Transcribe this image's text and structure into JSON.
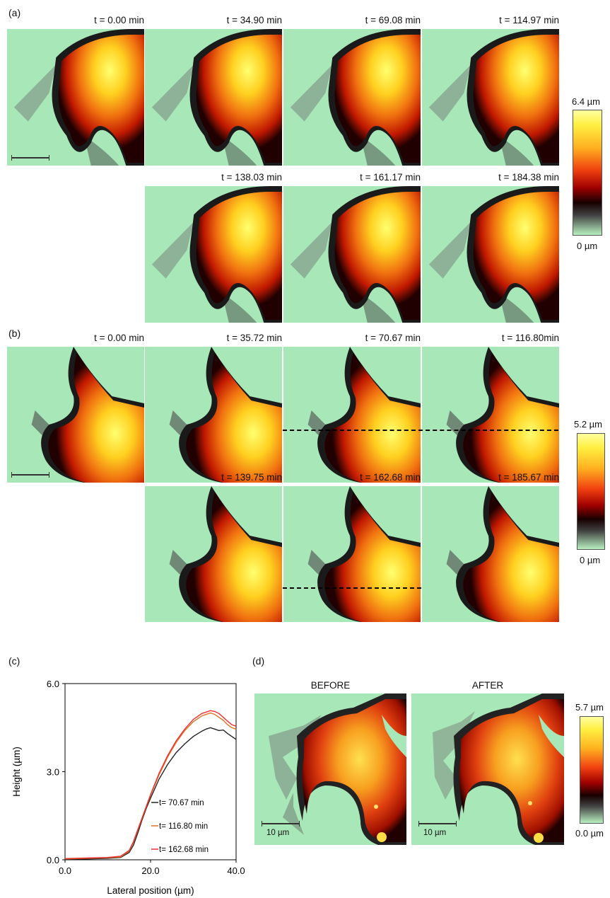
{
  "panels": {
    "a": {
      "label": "(a)",
      "times": [
        "t = 0.00 min",
        "t = 34.90 min",
        "t = 69.08 min",
        "t = 114.97 min",
        "t = 138.03 min",
        "t = 161.17 min",
        "t = 184.38 min"
      ],
      "colorbar": {
        "max": "6.4 µm",
        "min": "0 µm"
      }
    },
    "b": {
      "label": "(b)",
      "times": [
        "t = 0.00 min",
        "t = 35.72 min",
        "t = 70.67 min",
        "t = 116.80min",
        "t = 139.75 min",
        "t = 162.68 min",
        "t = 185.67 min"
      ],
      "colorbar": {
        "max": "5.2 µm",
        "min": "0 µm"
      }
    },
    "c": {
      "label": "(c)"
    },
    "d": {
      "label": "(d)",
      "before": "BEFORE",
      "after": "AFTER",
      "scale_before": "10 µm",
      "scale_after": "10 µm",
      "colorbar": {
        "max": "5.7 µm",
        "min": "0.0 µm"
      }
    }
  },
  "chart_data": {
    "type": "line",
    "xlabel": "Lateral position (µm)",
    "ylabel": "Height (µm)",
    "xlim": [
      0,
      40
    ],
    "ylim": [
      0,
      6
    ],
    "xticks": [
      "0.0",
      "20.0",
      "40.0"
    ],
    "yticks": [
      "0.0",
      "3.0",
      "6.0"
    ],
    "legend_position": "inside-lower-right",
    "series": [
      {
        "name": "t= 70.67 min",
        "color": "#222222",
        "x": [
          0,
          5,
          10,
          13,
          15,
          16,
          17,
          18,
          19,
          20,
          22,
          24,
          26,
          28,
          30,
          32,
          33,
          34,
          35,
          36,
          37,
          38,
          39,
          40
        ],
        "y": [
          0.02,
          0.03,
          0.05,
          0.08,
          0.25,
          0.5,
          0.9,
          1.35,
          1.75,
          2.1,
          2.75,
          3.25,
          3.65,
          3.95,
          4.2,
          4.38,
          4.45,
          4.5,
          4.45,
          4.4,
          4.42,
          4.3,
          4.2,
          4.1
        ]
      },
      {
        "name": "t= 116.80 min",
        "color": "#e07020",
        "x": [
          0,
          5,
          10,
          13,
          15,
          16,
          17,
          18,
          19,
          20,
          22,
          24,
          26,
          28,
          30,
          32,
          33,
          34,
          35,
          36,
          37,
          38,
          39,
          40
        ],
        "y": [
          0.03,
          0.05,
          0.07,
          0.1,
          0.3,
          0.6,
          1.0,
          1.4,
          1.8,
          2.2,
          2.9,
          3.5,
          4.0,
          4.4,
          4.7,
          4.9,
          4.95,
          5.0,
          4.95,
          4.85,
          4.75,
          4.6,
          4.5,
          4.45
        ]
      },
      {
        "name": "t= 162.68 min",
        "color": "#ee3030",
        "x": [
          0,
          5,
          10,
          13,
          15,
          16,
          17,
          18,
          19,
          20,
          22,
          24,
          26,
          28,
          30,
          32,
          33,
          34,
          35,
          36,
          37,
          38,
          39,
          40
        ],
        "y": [
          0.04,
          0.06,
          0.08,
          0.12,
          0.32,
          0.62,
          1.02,
          1.42,
          1.82,
          2.22,
          2.95,
          3.55,
          4.05,
          4.45,
          4.78,
          4.98,
          5.03,
          5.08,
          5.05,
          4.98,
          4.85,
          4.72,
          4.6,
          4.55
        ]
      }
    ]
  }
}
